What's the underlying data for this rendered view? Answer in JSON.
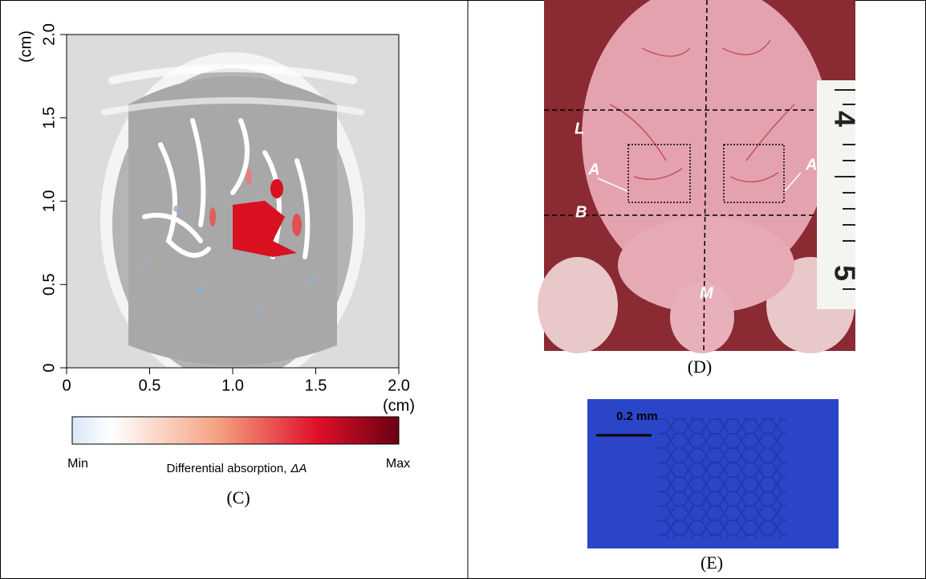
{
  "panel_c": {
    "y_axis": {
      "unit": "(cm)",
      "ticks": [
        "0",
        "0.5",
        "1.0",
        "1.5",
        "2.0"
      ]
    },
    "x_axis": {
      "unit": "(cm)",
      "ticks": [
        "0",
        "0.5",
        "1.0",
        "1.5",
        "2.0"
      ]
    },
    "colorbar": {
      "min": "Min",
      "max": "Max",
      "label": "Differential absorption,",
      "symbol": "ΔA"
    },
    "caption": "(C)"
  },
  "panel_d": {
    "labels": {
      "l": "L",
      "a_left": "A",
      "a_right": "A",
      "b": "B",
      "m": "M"
    },
    "ruler": [
      "4",
      "5"
    ],
    "caption": "(D)"
  },
  "panel_e": {
    "scale_bar": "0.2 mm",
    "caption": "(E)"
  }
}
